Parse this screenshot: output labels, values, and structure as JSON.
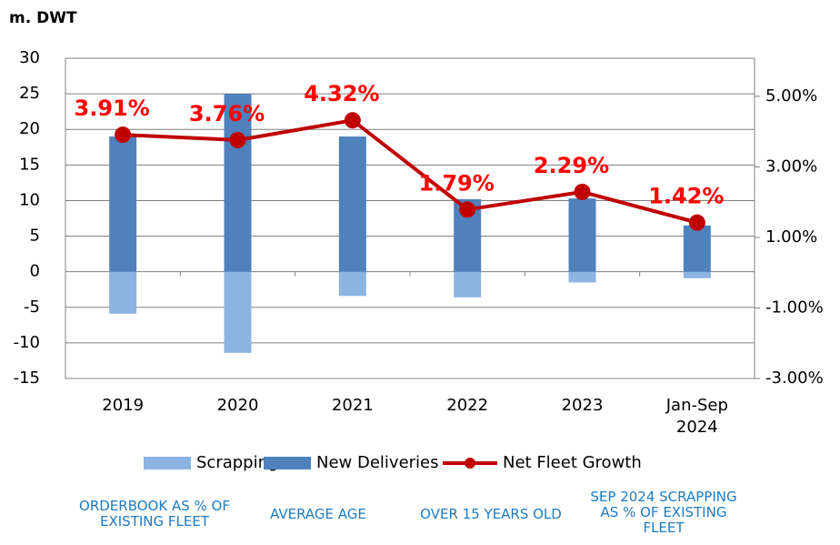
{
  "chart_data": {
    "type": "bar",
    "y_label": "m. DWT",
    "categories": [
      "2019",
      "2020",
      "2021",
      "2022",
      "2023",
      "Jan-Sep 2024"
    ],
    "series": [
      {
        "name": "Scrapping",
        "color": "#8db3e2",
        "values": [
          -5.9,
          -11.4,
          -3.4,
          -3.6,
          -1.5,
          -0.9
        ]
      },
      {
        "name": "New Deliveries",
        "color": "#4f81bd",
        "values": [
          19,
          25,
          19,
          10.2,
          10.3,
          6.5
        ]
      },
      {
        "name": "Net Fleet Growth",
        "color": "#c00000",
        "type": "line",
        "axis": "y2",
        "values": [
          3.91,
          3.76,
          4.32,
          1.79,
          2.29,
          1.42
        ],
        "value_labels": [
          "3.91%",
          "3.76%",
          "4.32%",
          "1.79%",
          "2.29%",
          "1.42%"
        ],
        "label_color": "#ff0000"
      }
    ],
    "ylim": [
      -15,
      30
    ],
    "yticks": [
      -15,
      -10,
      -5,
      0,
      5,
      10,
      15,
      20,
      25,
      30
    ],
    "y2lim": [
      -3,
      6.08
    ],
    "y2ticks": [
      {
        "value": -3,
        "label": "-3.00%"
      },
      {
        "value": -1,
        "label": "-1.00%"
      },
      {
        "value": 1,
        "label": "1.00%"
      },
      {
        "value": 3,
        "label": "3.00%"
      },
      {
        "value": 5,
        "label": "5.00%"
      }
    ],
    "legend": "bottom",
    "grid": true
  },
  "notes": [
    "ORDERBOOK AS % OF EXISTING FLEET",
    "AVERAGE AGE",
    "OVER 15 YEARS OLD",
    "SEP 2024 SCRAPPING AS % OF EXISTING FLEET"
  ]
}
